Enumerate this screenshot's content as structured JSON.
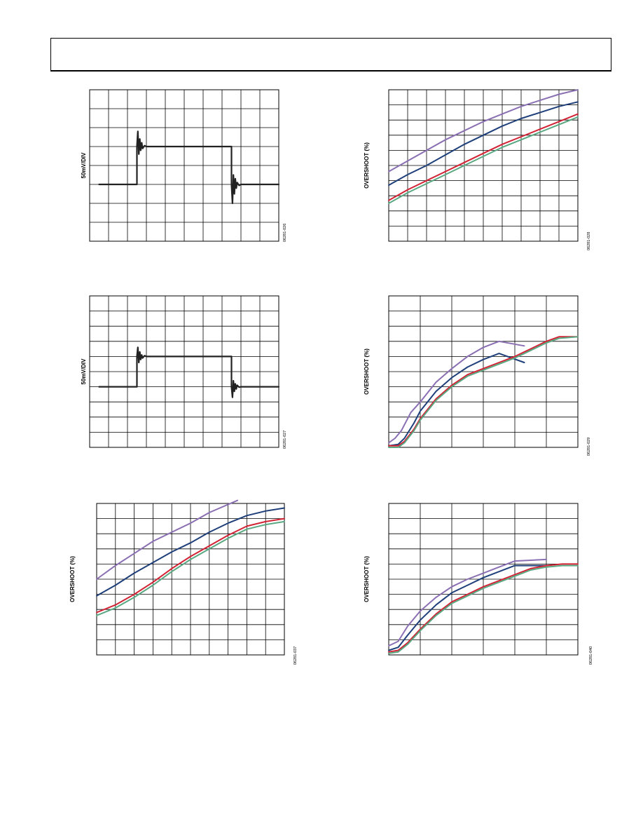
{
  "chart_data": [
    {
      "id": "scope-1",
      "type": "line",
      "ylabel": "50mV/DIV",
      "fig_id": "06281-026",
      "grid": true,
      "divisions": {
        "x": 10,
        "y": 8
      },
      "series": [
        {
          "color": "#222222",
          "x": [
            0.5,
            2.5,
            2.5,
            2.55,
            2.6,
            2.65,
            2.7,
            2.75,
            2.8,
            2.9,
            3.0,
            7.5,
            7.5,
            7.55,
            7.6,
            7.65,
            7.7,
            7.75,
            7.8,
            7.9,
            8.0,
            10.0
          ],
          "y": [
            3.0,
            3.0,
            5.0,
            5.8,
            4.6,
            5.4,
            4.8,
            5.2,
            4.9,
            5.05,
            5.0,
            5.0,
            3.0,
            2.0,
            3.5,
            2.5,
            3.3,
            2.8,
            3.1,
            2.95,
            3.0,
            3.0
          ]
        }
      ]
    },
    {
      "id": "scope-2",
      "type": "line",
      "ylabel": "50mV/DIV",
      "fig_id": "06281-027",
      "grid": true,
      "divisions": {
        "x": 10,
        "y": 10
      },
      "series": [
        {
          "color": "#222222",
          "x": [
            0.5,
            2.5,
            2.5,
            2.55,
            2.6,
            2.65,
            2.7,
            2.75,
            2.8,
            2.9,
            3.0,
            7.5,
            7.5,
            7.55,
            7.6,
            7.65,
            7.7,
            7.75,
            7.8,
            7.9,
            8.0,
            10.0
          ],
          "y": [
            4.0,
            4.0,
            6.0,
            6.6,
            5.6,
            6.3,
            5.8,
            6.1,
            5.9,
            6.05,
            6.0,
            6.0,
            4.0,
            3.3,
            4.4,
            3.7,
            4.2,
            3.85,
            4.1,
            3.97,
            4.0,
            4.0
          ]
        }
      ]
    },
    {
      "id": "overshoot-1",
      "type": "line",
      "ylabel": "OVERSHOOT (%)",
      "fig_id": "06281-028",
      "grid": true,
      "divisions": {
        "x": 10,
        "y": 10
      },
      "series": [
        {
          "color": "#8a6fb3",
          "x": [
            0,
            1,
            2,
            3,
            4,
            5,
            6,
            7,
            8,
            9,
            10
          ],
          "y": [
            4.6,
            5.3,
            6.0,
            6.7,
            7.3,
            7.9,
            8.4,
            8.9,
            9.3,
            9.7,
            10.0
          ]
        },
        {
          "color": "#1f3f7a",
          "x": [
            0,
            1,
            2,
            3,
            4,
            5,
            6,
            7,
            8,
            9,
            10
          ],
          "y": [
            3.7,
            4.4,
            5.0,
            5.7,
            6.4,
            7.0,
            7.6,
            8.1,
            8.5,
            8.9,
            9.2
          ]
        },
        {
          "color": "#d22335",
          "x": [
            0,
            1,
            2,
            3,
            4,
            5,
            6,
            7,
            8,
            9,
            10
          ],
          "y": [
            2.7,
            3.4,
            4.0,
            4.6,
            5.2,
            5.8,
            6.4,
            6.9,
            7.4,
            7.9,
            8.4
          ]
        },
        {
          "color": "#5aa882",
          "x": [
            0,
            1,
            2,
            3,
            4,
            5,
            6,
            7,
            8,
            9,
            10
          ],
          "y": [
            2.5,
            3.2,
            3.8,
            4.4,
            5.0,
            5.6,
            6.2,
            6.7,
            7.2,
            7.7,
            8.2
          ]
        }
      ]
    },
    {
      "id": "overshoot-2",
      "type": "line",
      "ylabel": "OVERSHOOT (%)",
      "fig_id": "06281-029",
      "grid": true,
      "divisions": {
        "x": 6,
        "y": 10
      },
      "series": [
        {
          "color": "#8a6fb3",
          "x": [
            0,
            0.2,
            0.4,
            0.7,
            1.0,
            1.5,
            2.0,
            2.5,
            3.0,
            3.5,
            4.3
          ],
          "y": [
            0.3,
            0.6,
            1.1,
            2.3,
            3.0,
            4.3,
            5.2,
            6.0,
            6.6,
            7.0,
            6.7
          ]
        },
        {
          "color": "#1f3f7a",
          "x": [
            0,
            0.3,
            0.5,
            0.8,
            1.0,
            1.5,
            2.0,
            2.5,
            3.0,
            3.5,
            4.3
          ],
          "y": [
            0.1,
            0.2,
            0.6,
            1.6,
            2.4,
            3.7,
            4.6,
            5.3,
            5.8,
            6.2,
            5.6
          ]
        },
        {
          "color": "#d22335",
          "x": [
            0,
            0.3,
            0.5,
            0.8,
            1.0,
            1.5,
            2.0,
            2.5,
            3.0,
            3.5,
            4.0,
            4.5,
            5.0,
            5.4,
            6.0
          ],
          "y": [
            0.1,
            0.1,
            0.4,
            1.2,
            1.9,
            3.2,
            4.1,
            4.8,
            5.2,
            5.6,
            6.0,
            6.5,
            7.0,
            7.3,
            7.3
          ]
        },
        {
          "color": "#5aa882",
          "x": [
            0,
            0.3,
            0.5,
            0.8,
            1.0,
            1.5,
            2.0,
            2.5,
            3.0,
            3.5,
            4.0,
            4.5,
            5.0,
            5.4,
            6.0
          ],
          "y": [
            0.0,
            0.0,
            0.3,
            1.1,
            1.8,
            3.1,
            4.0,
            4.7,
            5.1,
            5.5,
            5.9,
            6.4,
            6.9,
            7.2,
            7.3
          ]
        }
      ]
    },
    {
      "id": "overshoot-3",
      "type": "line",
      "ylabel": "OVERSHOOT (%)",
      "fig_id": "06281-037",
      "grid": true,
      "divisions": {
        "x": 10,
        "y": 10
      },
      "series": [
        {
          "color": "#8a6fb3",
          "x": [
            0,
            1,
            2,
            3,
            4,
            5,
            6,
            7.5
          ],
          "y": [
            5.0,
            5.9,
            6.7,
            7.5,
            8.1,
            8.7,
            9.4,
            10.2
          ]
        },
        {
          "color": "#1f3f7a",
          "x": [
            0,
            1,
            2,
            3,
            4,
            5,
            6,
            7,
            8,
            9,
            10
          ],
          "y": [
            3.9,
            4.6,
            5.4,
            6.1,
            6.8,
            7.4,
            8.1,
            8.7,
            9.2,
            9.5,
            9.7
          ]
        },
        {
          "color": "#d22335",
          "x": [
            0,
            1,
            2,
            3,
            4,
            5,
            6,
            7,
            8,
            9,
            10
          ],
          "y": [
            2.8,
            3.3,
            4.0,
            4.8,
            5.7,
            6.5,
            7.2,
            7.9,
            8.5,
            8.8,
            9.0
          ]
        },
        {
          "color": "#5aa882",
          "x": [
            0,
            1,
            2,
            3,
            4,
            5,
            6,
            7,
            8,
            9,
            10
          ],
          "y": [
            2.6,
            3.1,
            3.8,
            4.6,
            5.5,
            6.3,
            7.0,
            7.7,
            8.3,
            8.6,
            8.8
          ]
        }
      ]
    },
    {
      "id": "overshoot-4",
      "type": "line",
      "ylabel": "OVERSHOOT (%)",
      "fig_id": "06281-040",
      "grid": true,
      "divisions": {
        "x": 6,
        "y": 10
      },
      "series": [
        {
          "color": "#8a6fb3",
          "x": [
            0,
            0.3,
            0.6,
            1.0,
            1.5,
            2.0,
            2.5,
            3.0,
            3.5,
            4.0,
            5.0
          ],
          "y": [
            0.6,
            0.9,
            1.9,
            2.9,
            3.8,
            4.5,
            5.0,
            5.4,
            5.8,
            6.2,
            6.3
          ]
        },
        {
          "color": "#1f3f7a",
          "x": [
            0,
            0.3,
            0.6,
            1.0,
            1.5,
            2.0,
            2.5,
            3.0,
            3.5,
            4.0,
            5.0
          ],
          "y": [
            0.3,
            0.5,
            1.3,
            2.3,
            3.3,
            4.1,
            4.6,
            5.1,
            5.5,
            5.9,
            5.9
          ]
        },
        {
          "color": "#d22335",
          "x": [
            0,
            0.3,
            0.6,
            1.0,
            1.5,
            2.0,
            2.5,
            3.0,
            3.5,
            4.0,
            4.5,
            5.0,
            5.5,
            6.0
          ],
          "y": [
            0.2,
            0.3,
            0.8,
            1.7,
            2.7,
            3.5,
            4.0,
            4.5,
            4.9,
            5.3,
            5.7,
            5.9,
            6.0,
            6.0
          ]
        },
        {
          "color": "#5aa882",
          "x": [
            0,
            0.3,
            0.6,
            1.0,
            1.5,
            2.0,
            2.5,
            3.0,
            3.5,
            4.0,
            4.5,
            5.0,
            5.5,
            6.0
          ],
          "y": [
            0.1,
            0.2,
            0.7,
            1.6,
            2.6,
            3.4,
            3.9,
            4.4,
            4.8,
            5.2,
            5.6,
            5.8,
            5.9,
            5.9
          ]
        }
      ]
    }
  ]
}
